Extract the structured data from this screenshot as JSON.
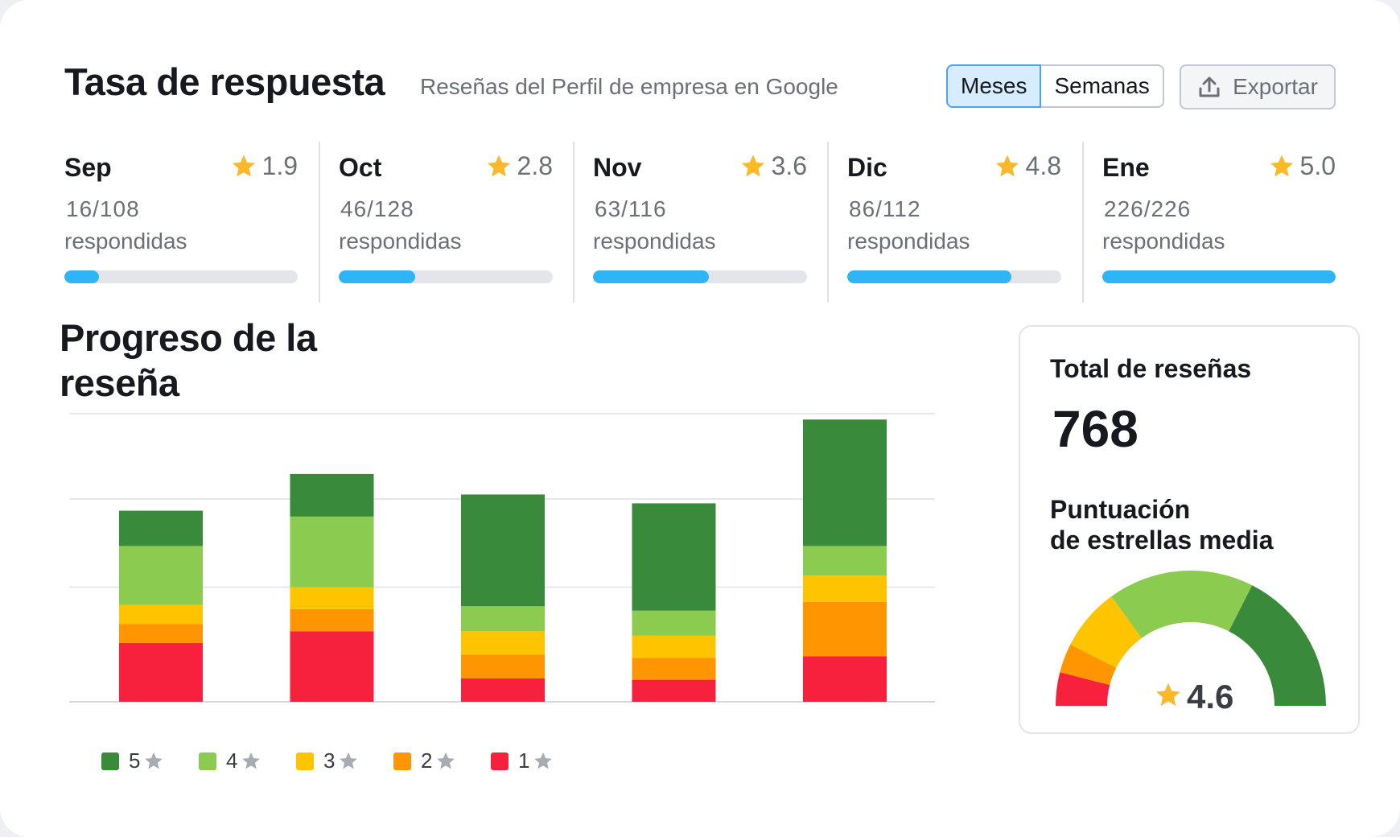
{
  "header": {
    "title": "Tasa de respuesta",
    "subtitle": "Reseñas del Perfil de empresa en Google",
    "toggle": {
      "months_label": "Meses",
      "weeks_label": "Semanas",
      "selected": "Meses"
    },
    "export_label": "Exportar",
    "accent_color": "#4aa3f5"
  },
  "months": [
    {
      "name": "Sep",
      "rating": "1.9",
      "count": "16/108",
      "label": "respondidas",
      "progress": 0.148
    },
    {
      "name": "Oct",
      "rating": "2.8",
      "count": "46/128",
      "label": "respondidas",
      "progress": 0.359
    },
    {
      "name": "Nov",
      "rating": "3.6",
      "count": "63/116",
      "label": "respondidas",
      "progress": 0.543
    },
    {
      "name": "Dic",
      "rating": "4.8",
      "count": "86/112",
      "label": "respondidas",
      "progress": 0.768
    },
    {
      "name": "Ene",
      "rating": "5.0",
      "count": "226/226",
      "label": "respondidas",
      "progress": 1.0
    }
  ],
  "progress_bar_color": "#2eb5f7",
  "review_progress": {
    "title_line1": "Progreso de la",
    "title_line2": "reseña"
  },
  "chart_data": {
    "type": "bar",
    "stacked": true,
    "categories": [
      "Sep",
      "Oct",
      "Nov",
      "Dic",
      "Ene"
    ],
    "series": [
      {
        "name": "1",
        "color": "#f7213e",
        "values": [
          20,
          24,
          8,
          7.5,
          15.5
        ]
      },
      {
        "name": "2",
        "color": "#ff9500",
        "values": [
          6.5,
          7.5,
          8,
          7.5,
          18.5
        ]
      },
      {
        "name": "3",
        "color": "#ffc400",
        "values": [
          6.5,
          7.5,
          8,
          7.5,
          9
        ]
      },
      {
        "name": "4",
        "color": "#8bcb4f",
        "values": [
          20,
          24,
          8.5,
          8.5,
          10
        ]
      },
      {
        "name": "5",
        "color": "#398a3b",
        "values": [
          12,
          14.5,
          38,
          36.5,
          43
        ]
      }
    ],
    "ylim": [
      0,
      98
    ],
    "gridlines": [
      0,
      39,
      69,
      98
    ],
    "grid": true,
    "legend": "bottom",
    "title": "",
    "xlabel": "",
    "ylabel": ""
  },
  "summary": {
    "total_label": "Total de reseñas",
    "total_value": "768",
    "avg_label_line1": "Puntuación",
    "avg_label_line2": "de estrellas media",
    "avg_value": "4.6",
    "gauge_max": 5,
    "gauge_segments": [
      {
        "color": "#f7213e",
        "fraction": 0.08
      },
      {
        "color": "#ff9500",
        "fraction": 0.07
      },
      {
        "color": "#ffc400",
        "fraction": 0.15
      },
      {
        "color": "#8bcb4f",
        "fraction": 0.35
      },
      {
        "color": "#398a3b",
        "fraction": 0.35
      }
    ]
  },
  "icons": {
    "star": "star-icon",
    "export": "upload-icon"
  },
  "colors": {
    "star": "#fbb929",
    "legend_star": "#a7abb2"
  }
}
